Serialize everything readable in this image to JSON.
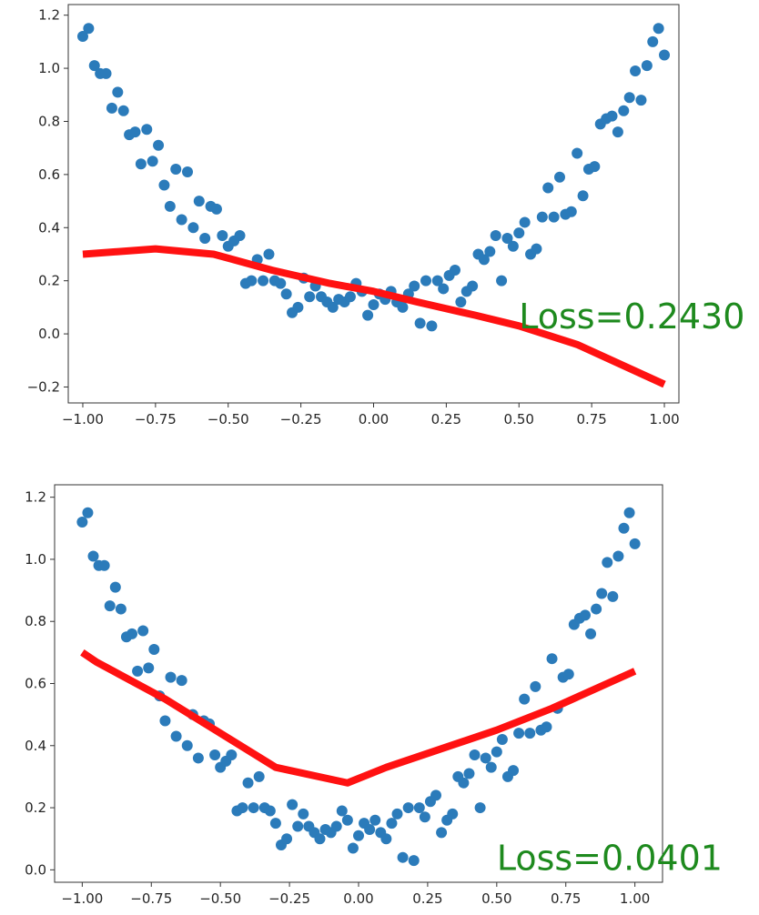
{
  "colors": {
    "scatter": "#2b7bba",
    "line": "#ff1111",
    "loss_text": "#1e8a1e",
    "axes": "#333333"
  },
  "chart_data": [
    {
      "type": "scatter",
      "xlim": [
        -1.05,
        1.05
      ],
      "ylim": [
        -0.26,
        1.24
      ],
      "xticks": [
        -1.0,
        -0.75,
        -0.5,
        -0.25,
        0.0,
        0.25,
        0.5,
        0.75,
        1.0
      ],
      "xtick_labels": [
        "−1.00",
        "−0.75",
        "−0.50",
        "−0.25",
        "0.00",
        "0.25",
        "0.50",
        "0.75",
        "1.00"
      ],
      "yticks": [
        -0.2,
        0.0,
        0.2,
        0.4,
        0.6,
        0.8,
        1.0,
        1.2
      ],
      "ytick_labels": [
        "−0.2",
        "0.0",
        "0.2",
        "0.4",
        "0.6",
        "0.8",
        "1.0",
        "1.2"
      ],
      "annotation": {
        "text": "Loss=0.2430",
        "x": 0.5,
        "y": 0.02
      },
      "series": [
        {
          "kind": "scatter",
          "x": [
            -1.0,
            -0.98,
            -0.96,
            -0.94,
            -0.92,
            -0.9,
            -0.88,
            -0.86,
            -0.84,
            -0.82,
            -0.8,
            -0.78,
            -0.76,
            -0.74,
            -0.72,
            -0.7,
            -0.68,
            -0.66,
            -0.64,
            -0.62,
            -0.6,
            -0.58,
            -0.56,
            -0.54,
            -0.52,
            -0.5,
            -0.48,
            -0.46,
            -0.44,
            -0.42,
            -0.4,
            -0.38,
            -0.36,
            -0.34,
            -0.32,
            -0.3,
            -0.28,
            -0.26,
            -0.24,
            -0.22,
            -0.2,
            -0.18,
            -0.16,
            -0.14,
            -0.12,
            -0.1,
            -0.08,
            -0.06,
            -0.04,
            -0.02,
            0.0,
            0.02,
            0.04,
            0.06,
            0.08,
            0.1,
            0.12,
            0.14,
            0.16,
            0.18,
            0.2,
            0.22,
            0.24,
            0.26,
            0.28,
            0.3,
            0.32,
            0.34,
            0.36,
            0.38,
            0.4,
            0.42,
            0.44,
            0.46,
            0.48,
            0.5,
            0.52,
            0.54,
            0.56,
            0.58,
            0.6,
            0.62,
            0.64,
            0.66,
            0.68,
            0.7,
            0.72,
            0.74,
            0.76,
            0.78,
            0.8,
            0.82,
            0.84,
            0.86,
            0.88,
            0.9,
            0.92,
            0.94,
            0.96,
            0.98,
            1.0
          ],
          "y": [
            1.12,
            1.15,
            1.01,
            0.98,
            0.98,
            0.85,
            0.91,
            0.84,
            0.75,
            0.76,
            0.64,
            0.77,
            0.65,
            0.71,
            0.56,
            0.48,
            0.62,
            0.43,
            0.61,
            0.4,
            0.5,
            0.36,
            0.48,
            0.47,
            0.37,
            0.33,
            0.35,
            0.37,
            0.19,
            0.2,
            0.28,
            0.2,
            0.3,
            0.2,
            0.19,
            0.15,
            0.08,
            0.1,
            0.21,
            0.14,
            0.18,
            0.14,
            0.12,
            0.1,
            0.13,
            0.12,
            0.14,
            0.19,
            0.16,
            0.07,
            0.11,
            0.15,
            0.13,
            0.16,
            0.12,
            0.1,
            0.15,
            0.18,
            0.04,
            0.2,
            0.03,
            0.2,
            0.17,
            0.22,
            0.24,
            0.12,
            0.16,
            0.18,
            0.3,
            0.28,
            0.31,
            0.37,
            0.2,
            0.36,
            0.33,
            0.38,
            0.42,
            0.3,
            0.32,
            0.44,
            0.55,
            0.44,
            0.59,
            0.45,
            0.46,
            0.68,
            0.52,
            0.62,
            0.63,
            0.79,
            0.81,
            0.82,
            0.76,
            0.84,
            0.89,
            0.99,
            0.88,
            1.01,
            1.1,
            1.15,
            1.05
          ],
          "marker_color": "#2b7bba"
        },
        {
          "kind": "line",
          "x": [
            -1.0,
            -0.75,
            -0.55,
            -0.35,
            -0.15,
            0.0,
            0.15,
            0.35,
            0.5,
            0.7,
            1.0
          ],
          "y": [
            0.3,
            0.32,
            0.3,
            0.24,
            0.19,
            0.16,
            0.12,
            0.07,
            0.03,
            -0.04,
            -0.19
          ],
          "line_color": "#ff1111"
        }
      ]
    },
    {
      "type": "scatter",
      "xlim": [
        -1.1,
        1.1
      ],
      "ylim": [
        -0.04,
        1.24
      ],
      "xticks": [
        -1.0,
        -0.75,
        -0.5,
        -0.25,
        0.0,
        0.25,
        0.5,
        0.75,
        1.0
      ],
      "xtick_labels": [
        "−1.00",
        "−0.75",
        "−0.50",
        "−0.25",
        "0.00",
        "0.25",
        "0.50",
        "0.75",
        "1.00"
      ],
      "yticks": [
        0.0,
        0.2,
        0.4,
        0.6,
        0.8,
        1.0,
        1.2
      ],
      "ytick_labels": [
        "0.0",
        "0.2",
        "0.4",
        "0.6",
        "0.8",
        "1.0",
        "1.2"
      ],
      "annotation": {
        "text": "Loss=0.0401",
        "x": 0.5,
        "y": 0.0
      },
      "series": [
        {
          "kind": "scatter",
          "x": [
            -1.0,
            -0.98,
            -0.96,
            -0.94,
            -0.92,
            -0.9,
            -0.88,
            -0.86,
            -0.84,
            -0.82,
            -0.8,
            -0.78,
            -0.76,
            -0.74,
            -0.72,
            -0.7,
            -0.68,
            -0.66,
            -0.64,
            -0.62,
            -0.6,
            -0.58,
            -0.56,
            -0.54,
            -0.52,
            -0.5,
            -0.48,
            -0.46,
            -0.44,
            -0.42,
            -0.4,
            -0.38,
            -0.36,
            -0.34,
            -0.32,
            -0.3,
            -0.28,
            -0.26,
            -0.24,
            -0.22,
            -0.2,
            -0.18,
            -0.16,
            -0.14,
            -0.12,
            -0.1,
            -0.08,
            -0.06,
            -0.04,
            -0.02,
            0.0,
            0.02,
            0.04,
            0.06,
            0.08,
            0.1,
            0.12,
            0.14,
            0.16,
            0.18,
            0.2,
            0.22,
            0.24,
            0.26,
            0.28,
            0.3,
            0.32,
            0.34,
            0.36,
            0.38,
            0.4,
            0.42,
            0.44,
            0.46,
            0.48,
            0.5,
            0.52,
            0.54,
            0.56,
            0.58,
            0.6,
            0.62,
            0.64,
            0.66,
            0.68,
            0.7,
            0.72,
            0.74,
            0.76,
            0.78,
            0.8,
            0.82,
            0.84,
            0.86,
            0.88,
            0.9,
            0.92,
            0.94,
            0.96,
            0.98,
            1.0
          ],
          "y": [
            1.12,
            1.15,
            1.01,
            0.98,
            0.98,
            0.85,
            0.91,
            0.84,
            0.75,
            0.76,
            0.64,
            0.77,
            0.65,
            0.71,
            0.56,
            0.48,
            0.62,
            0.43,
            0.61,
            0.4,
            0.5,
            0.36,
            0.48,
            0.47,
            0.37,
            0.33,
            0.35,
            0.37,
            0.19,
            0.2,
            0.28,
            0.2,
            0.3,
            0.2,
            0.19,
            0.15,
            0.08,
            0.1,
            0.21,
            0.14,
            0.18,
            0.14,
            0.12,
            0.1,
            0.13,
            0.12,
            0.14,
            0.19,
            0.16,
            0.07,
            0.11,
            0.15,
            0.13,
            0.16,
            0.12,
            0.1,
            0.15,
            0.18,
            0.04,
            0.2,
            0.03,
            0.2,
            0.17,
            0.22,
            0.24,
            0.12,
            0.16,
            0.18,
            0.3,
            0.28,
            0.31,
            0.37,
            0.2,
            0.36,
            0.33,
            0.38,
            0.42,
            0.3,
            0.32,
            0.44,
            0.55,
            0.44,
            0.59,
            0.45,
            0.46,
            0.68,
            0.52,
            0.62,
            0.63,
            0.79,
            0.81,
            0.82,
            0.76,
            0.84,
            0.89,
            0.99,
            0.88,
            1.01,
            1.1,
            1.15,
            1.05
          ],
          "marker_color": "#2b7bba"
        },
        {
          "kind": "line",
          "x": [
            -1.0,
            -0.95,
            -0.7,
            -0.5,
            -0.3,
            -0.04,
            0.1,
            0.3,
            0.5,
            0.7,
            0.9,
            1.0
          ],
          "y": [
            0.7,
            0.67,
            0.55,
            0.44,
            0.33,
            0.28,
            0.33,
            0.39,
            0.45,
            0.52,
            0.6,
            0.64
          ],
          "line_color": "#ff1111"
        }
      ]
    }
  ]
}
